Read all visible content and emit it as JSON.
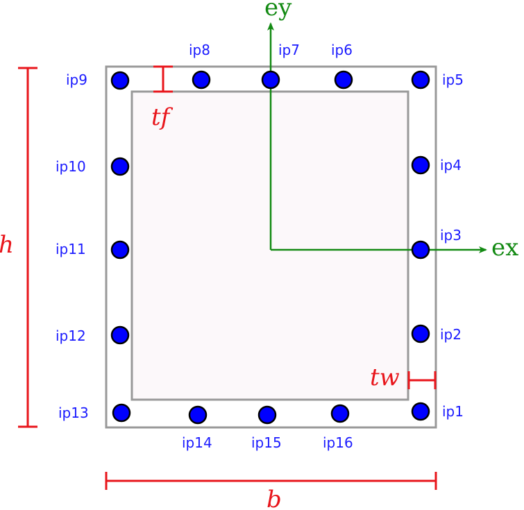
{
  "axes": {
    "ey": "ey",
    "ex": "ex"
  },
  "dimensions": {
    "h": "h",
    "b": "b",
    "tf": "tf",
    "tw": "tw"
  },
  "integration_points": {
    "ip1": "ip1",
    "ip2": "ip2",
    "ip3": "ip3",
    "ip4": "ip4",
    "ip5": "ip5",
    "ip6": "ip6",
    "ip7": "ip7",
    "ip8": "ip8",
    "ip9": "ip9",
    "ip10": "ip10",
    "ip11": "ip11",
    "ip12": "ip12",
    "ip13": "ip13",
    "ip14": "ip14",
    "ip15": "ip15",
    "ip16": "ip16"
  },
  "colors": {
    "section_outline": "#999999",
    "section_fill": "#fcf8fa",
    "dimension": "#e8151b",
    "axis": "#138a13",
    "point_fill": "#0000ff",
    "point_stroke": "#000000",
    "label": "#1a1aff"
  }
}
